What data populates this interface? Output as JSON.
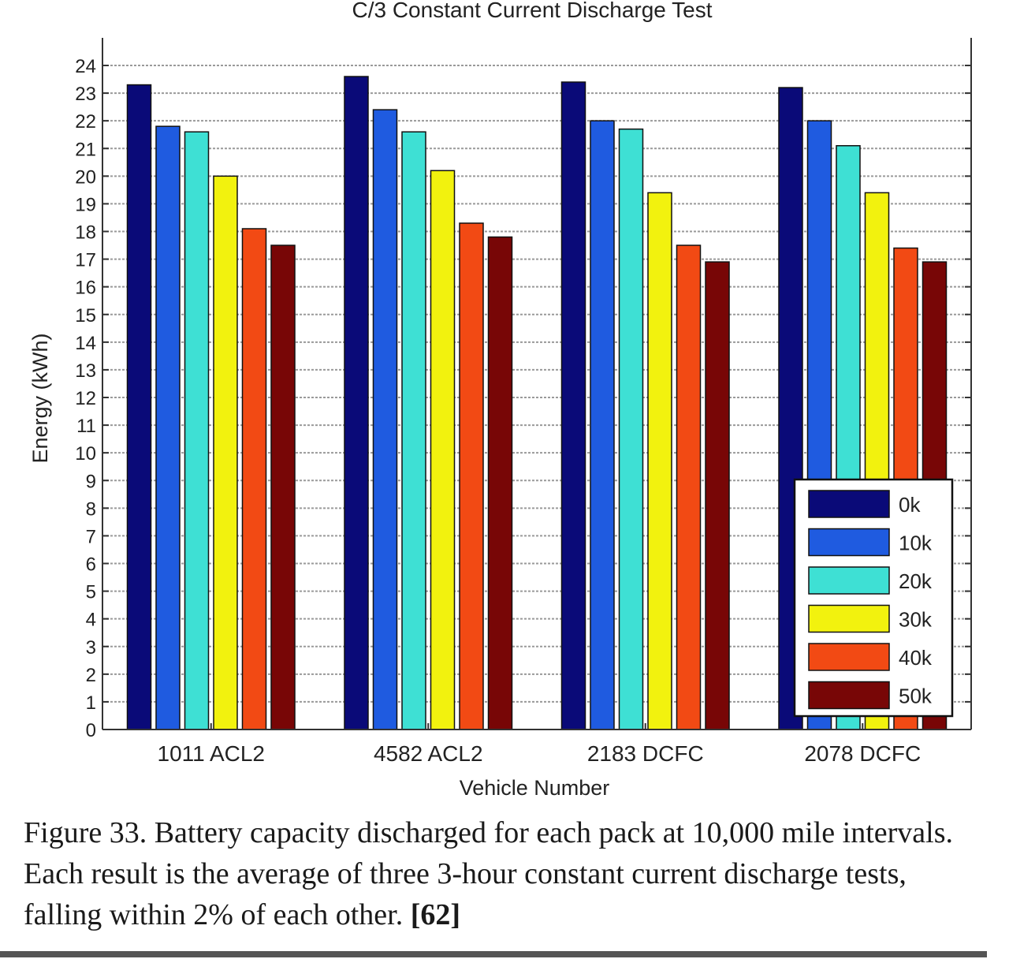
{
  "chart_data": {
    "type": "bar",
    "title": "C/3 Constant Current Discharge Test",
    "xlabel": "Vehicle Number",
    "ylabel": "Energy (kWh)",
    "ylim": [
      0,
      24
    ],
    "yticks": [
      0,
      1,
      2,
      3,
      4,
      5,
      6,
      7,
      8,
      9,
      10,
      11,
      12,
      13,
      14,
      15,
      16,
      17,
      18,
      19,
      20,
      21,
      22,
      23,
      24
    ],
    "grid": true,
    "legend_position": "bottom-right",
    "categories": [
      "1011 ACL2",
      "4582 ACL2",
      "2183 DCFC",
      "2078 DCFC"
    ],
    "series": [
      {
        "name": "0k",
        "color": "#0a0a78",
        "values": [
          23.3,
          23.6,
          23.4,
          23.2
        ]
      },
      {
        "name": "10k",
        "color": "#1f5be0",
        "values": [
          21.8,
          22.4,
          22.0,
          22.0
        ]
      },
      {
        "name": "20k",
        "color": "#3ee0d4",
        "values": [
          21.6,
          21.6,
          21.7,
          21.1
        ]
      },
      {
        "name": "30k",
        "color": "#f2f20e",
        "values": [
          20.0,
          20.2,
          19.4,
          19.4
        ]
      },
      {
        "name": "40k",
        "color": "#f24a14",
        "values": [
          18.1,
          18.3,
          17.5,
          17.4
        ]
      },
      {
        "name": "50k",
        "color": "#780606",
        "values": [
          17.5,
          17.8,
          16.9,
          16.9
        ]
      }
    ]
  },
  "caption": {
    "text": "Figure 33. Battery capacity discharged for each pack at 10,000 mile intervals. Each result is the average of three 3-hour constant current discharge tests, falling within 2% of each other.",
    "reference": "[62]"
  }
}
